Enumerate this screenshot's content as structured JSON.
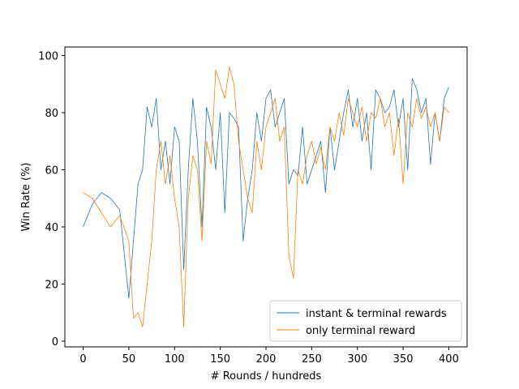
{
  "chart_data": {
    "type": "line",
    "title": "",
    "xlabel": "# Rounds / hundreds",
    "ylabel": "Win Rate (%)",
    "xlim": [
      -20,
      420
    ],
    "ylim": [
      -2,
      103
    ],
    "xticks": [
      0,
      50,
      100,
      150,
      200,
      250,
      300,
      350,
      400
    ],
    "yticks": [
      0,
      20,
      40,
      60,
      80,
      100
    ],
    "grid": false,
    "legend_position": "lower-right",
    "series": [
      {
        "name": "instant & terminal rewards",
        "color": "#1f77b4",
        "x": [
          0,
          10,
          20,
          30,
          40,
          50,
          55,
          60,
          65,
          70,
          75,
          80,
          85,
          90,
          95,
          100,
          105,
          110,
          115,
          120,
          125,
          130,
          135,
          140,
          145,
          150,
          155,
          160,
          165,
          170,
          175,
          180,
          185,
          190,
          195,
          200,
          205,
          210,
          215,
          220,
          225,
          230,
          235,
          240,
          245,
          250,
          255,
          260,
          265,
          270,
          275,
          280,
          285,
          290,
          295,
          300,
          305,
          310,
          315,
          320,
          325,
          330,
          335,
          340,
          345,
          350,
          355,
          360,
          365,
          370,
          375,
          380,
          385,
          390,
          395,
          400
        ],
        "values": [
          40,
          48,
          52,
          50,
          46,
          15,
          35,
          55,
          60,
          82,
          75,
          85,
          60,
          70,
          55,
          75,
          70,
          25,
          60,
          85,
          70,
          40,
          82,
          75,
          60,
          80,
          45,
          80,
          78,
          75,
          35,
          50,
          60,
          80,
          70,
          85,
          88,
          75,
          80,
          85,
          55,
          60,
          58,
          75,
          55,
          60,
          65,
          70,
          52,
          75,
          60,
          70,
          80,
          88,
          75,
          85,
          70,
          80,
          60,
          88,
          85,
          80,
          82,
          88,
          75,
          85,
          60,
          92,
          88,
          80,
          85,
          62,
          80,
          70,
          85,
          89
        ]
      },
      {
        "name": "only terminal reward",
        "color": "#ff7f0e",
        "x": [
          0,
          10,
          20,
          30,
          40,
          50,
          55,
          60,
          65,
          70,
          75,
          80,
          85,
          90,
          95,
          100,
          105,
          110,
          115,
          120,
          125,
          130,
          135,
          140,
          145,
          150,
          155,
          160,
          165,
          170,
          175,
          180,
          185,
          190,
          195,
          200,
          205,
          210,
          215,
          220,
          225,
          230,
          235,
          240,
          245,
          250,
          255,
          260,
          265,
          270,
          275,
          280,
          285,
          290,
          295,
          300,
          305,
          310,
          315,
          320,
          325,
          330,
          335,
          340,
          345,
          350,
          355,
          360,
          365,
          370,
          375,
          380,
          385,
          390,
          395,
          400
        ],
        "values": [
          52,
          50,
          45,
          40,
          44,
          35,
          8,
          10,
          5,
          20,
          35,
          60,
          70,
          55,
          65,
          50,
          40,
          5,
          50,
          65,
          60,
          35,
          70,
          62,
          95,
          90,
          85,
          96,
          90,
          70,
          60,
          50,
          45,
          70,
          60,
          75,
          80,
          85,
          70,
          75,
          30,
          22,
          60,
          55,
          65,
          70,
          62,
          68,
          60,
          75,
          70,
          80,
          72,
          85,
          80,
          75,
          82,
          70,
          80,
          78,
          85,
          75,
          80,
          65,
          78,
          55,
          80,
          75,
          85,
          78,
          82,
          75,
          80,
          70,
          82,
          80
        ]
      }
    ]
  }
}
